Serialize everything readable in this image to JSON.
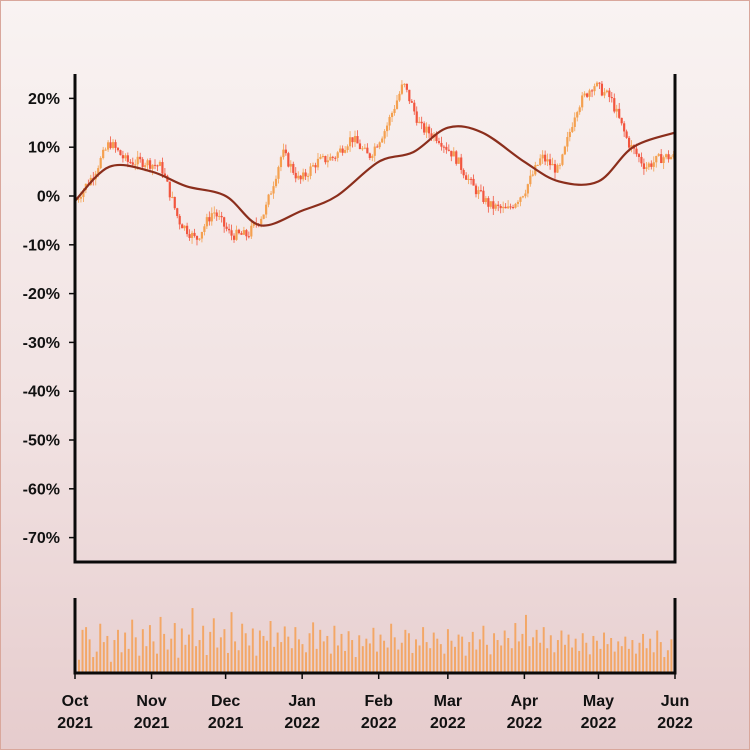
{
  "chart_data": {
    "type": "candlestick",
    "title": "",
    "xlabel": "",
    "ylabel": "",
    "ylim": [
      -75,
      25
    ],
    "y_ticks": [
      "20%",
      "10%",
      "0%",
      "-10%",
      "-20%",
      "-30%",
      "-40%",
      "-50%",
      "-60%",
      "-70%"
    ],
    "y_tick_values": [
      20,
      10,
      0,
      -10,
      -20,
      -30,
      -40,
      -50,
      -60,
      -70
    ],
    "x_ticks": [
      {
        "month": "Oct",
        "year": "2021",
        "date": "2021-10-01"
      },
      {
        "month": "Nov",
        "year": "2021",
        "date": "2021-11-01"
      },
      {
        "month": "Dec",
        "year": "2021",
        "date": "2021-12-01"
      },
      {
        "month": "Jan",
        "year": "2022",
        "date": "2022-01-01"
      },
      {
        "month": "Feb",
        "year": "2022",
        "date": "2022-02-01"
      },
      {
        "month": "Mar",
        "year": "2022",
        "date": "2022-03-01"
      },
      {
        "month": "Apr",
        "year": "2022",
        "date": "2022-04-01"
      },
      {
        "month": "May",
        "year": "2022",
        "date": "2022-05-01"
      },
      {
        "month": "Jun",
        "year": "2022",
        "date": "2022-06-01"
      }
    ],
    "xlim": [
      "2021-10-01",
      "2022-06-01"
    ],
    "price_series": {
      "dates": [
        "2021-10-01",
        "2021-10-08",
        "2021-10-15",
        "2021-10-22",
        "2021-10-29",
        "2021-11-05",
        "2021-11-12",
        "2021-11-19",
        "2021-11-26",
        "2021-12-03",
        "2021-12-10",
        "2021-12-17",
        "2021-12-24",
        "2021-12-31",
        "2022-01-07",
        "2022-01-14",
        "2022-01-21",
        "2022-01-28",
        "2022-02-04",
        "2022-02-11",
        "2022-02-18",
        "2022-02-25",
        "2022-03-04",
        "2022-03-11",
        "2022-03-18",
        "2022-03-25",
        "2022-04-01",
        "2022-04-08",
        "2022-04-15",
        "2022-04-22",
        "2022-04-29",
        "2022-05-06",
        "2022-05-13",
        "2022-05-20",
        "2022-05-27",
        "2022-06-01"
      ],
      "values": [
        -1,
        4,
        11,
        7,
        7,
        6,
        -5,
        -9,
        -3,
        -8,
        -8,
        -3,
        9,
        3,
        7,
        8,
        12,
        8,
        14,
        23,
        14,
        12,
        8,
        2,
        -2,
        -3,
        1,
        8,
        5,
        18,
        23,
        20,
        11,
        6,
        8,
        8
      ]
    },
    "moving_average": {
      "dates": [
        "2021-10-01",
        "2021-10-15",
        "2021-11-01",
        "2021-11-15",
        "2021-12-01",
        "2021-12-15",
        "2022-01-01",
        "2022-01-15",
        "2022-02-01",
        "2022-02-15",
        "2022-03-01",
        "2022-03-15",
        "2022-04-01",
        "2022-04-15",
        "2022-05-01",
        "2022-05-15",
        "2022-06-01"
      ],
      "values": [
        -1,
        6,
        5,
        2,
        0,
        -6,
        -3,
        0,
        7,
        9,
        14,
        13,
        7,
        3,
        3,
        10,
        13
      ]
    },
    "volume": {
      "ylim": [
        0,
        100
      ],
      "values": [
        18,
        62,
        66,
        48,
        22,
        30,
        71,
        44,
        53,
        15,
        47,
        62,
        29,
        58,
        34,
        77,
        51,
        24,
        63,
        38,
        69,
        45,
        27,
        81,
        56,
        33,
        49,
        72,
        21,
        64,
        40,
        55,
        94,
        38,
        47,
        68,
        25,
        59,
        79,
        36,
        51,
        63,
        28,
        88,
        45,
        32,
        71,
        57,
        39,
        64,
        24,
        61,
        53,
        46,
        75,
        37,
        58,
        44,
        67,
        52,
        35,
        66,
        48,
        41,
        29,
        57,
        73,
        34,
        62,
        45,
        53,
        27,
        68,
        39,
        56,
        31,
        60,
        47,
        22,
        54,
        38,
        49,
        42,
        65,
        30,
        55,
        46,
        36,
        71,
        51,
        33,
        43,
        62,
        57,
        28,
        48,
        39,
        66,
        44,
        35,
        58,
        49,
        41,
        27,
        63,
        46,
        37,
        55,
        52,
        24,
        44,
        59,
        33,
        48,
        68,
        40,
        26,
        57,
        47,
        39,
        61,
        50,
        35,
        72,
        45,
        56,
        84,
        38,
        51,
        62,
        43,
        66,
        35,
        54,
        29,
        47,
        61,
        40,
        55,
        36,
        49,
        31,
        57,
        43,
        26,
        53,
        46,
        34,
        58,
        41,
        50,
        30,
        45,
        38,
        52,
        34,
        47,
        27,
        43,
        56,
        35,
        49,
        29,
        61,
        44,
        22,
        32,
        48
      ]
    },
    "colors": {
      "candle_up": "#f4a04f",
      "candle_down": "#f2553e",
      "moving_average": "#8b2e1c",
      "volume": "#f3a766",
      "axis": "#0a0a0a"
    }
  }
}
